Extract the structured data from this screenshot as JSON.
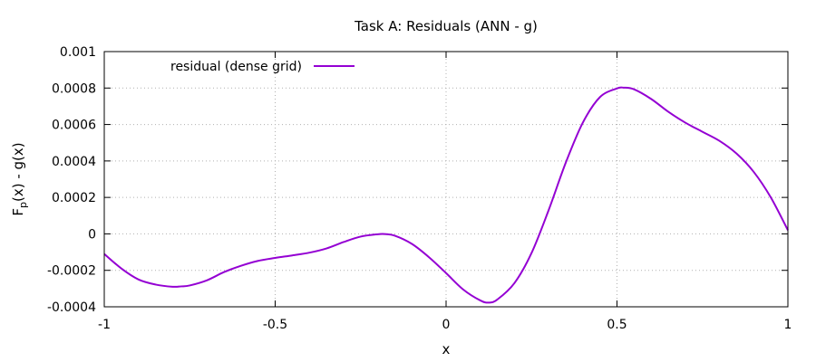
{
  "chart_data": {
    "type": "line",
    "title": "Task A: Residuals (ANN - g)",
    "xlabel": "x",
    "ylabel": "F_p(x) - g(x)",
    "ylabel_main": "F",
    "ylabel_sub": "p",
    "ylabel_rest": "(x) - g(x)",
    "xlim": [
      -1,
      1
    ],
    "ylim": [
      -0.0004,
      0.001
    ],
    "x_ticks": [
      -1,
      -0.5,
      0,
      0.5,
      1
    ],
    "x_tick_labels": [
      "-1",
      "-0.5",
      "0",
      "0.5",
      "1"
    ],
    "y_ticks": [
      -0.0004,
      -0.0002,
      0,
      0.0002,
      0.0004,
      0.0006,
      0.0008,
      0.001
    ],
    "y_tick_labels": [
      "-0.0004",
      "-0.0002",
      "0",
      "0.0002",
      "0.0004",
      "0.0006",
      "0.0008",
      "0.001"
    ],
    "grid": true,
    "legend_position": "top-left",
    "series": [
      {
        "name": "residual (dense grid)",
        "color": "#9400d3",
        "x": [
          -1.0,
          -0.95,
          -0.9,
          -0.85,
          -0.8,
          -0.775,
          -0.75,
          -0.7,
          -0.65,
          -0.6,
          -0.55,
          -0.5,
          -0.45,
          -0.4,
          -0.35,
          -0.3,
          -0.25,
          -0.2,
          -0.18,
          -0.15,
          -0.1,
          -0.05,
          0.0,
          0.05,
          0.1,
          0.125,
          0.15,
          0.2,
          0.25,
          0.3,
          0.35,
          0.4,
          0.45,
          0.5,
          0.52,
          0.55,
          0.6,
          0.65,
          0.7,
          0.75,
          0.8,
          0.85,
          0.9,
          0.95,
          1.0
        ],
        "y": [
          -0.00011,
          -0.00019,
          -0.00025,
          -0.000278,
          -0.00029,
          -0.000288,
          -0.000283,
          -0.000255,
          -0.00021,
          -0.000175,
          -0.000148,
          -0.000132,
          -0.000118,
          -0.000103,
          -8e-05,
          -4.5e-05,
          -1.5e-05,
          -2e-06,
          -1e-06,
          -1e-05,
          -5.5e-05,
          -0.000128,
          -0.000215,
          -0.000305,
          -0.000365,
          -0.000377,
          -0.00036,
          -0.00027,
          -0.000105,
          0.00013,
          0.00039,
          0.00061,
          0.00075,
          0.000798,
          0.000802,
          0.000793,
          0.00074,
          0.00067,
          0.00061,
          0.00056,
          0.00051,
          0.00044,
          0.00034,
          0.0002,
          2e-05
        ]
      }
    ]
  }
}
